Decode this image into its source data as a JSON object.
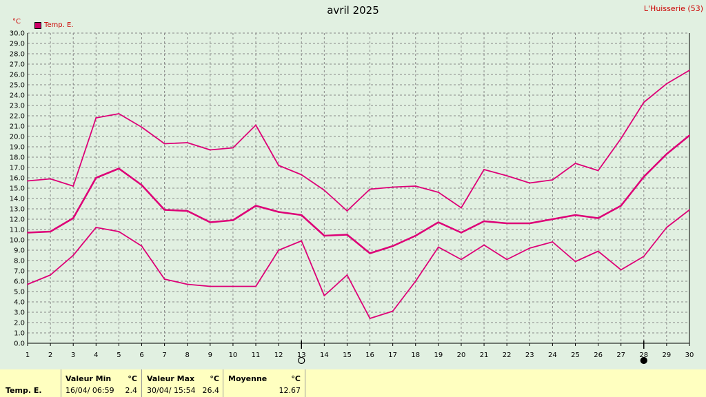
{
  "header": {
    "title": "avril 2025",
    "station": "L'Huisserie (53)",
    "unit": "°C"
  },
  "legend": {
    "label": "Temp. E.",
    "color": "#cc0066"
  },
  "stats": {
    "row_label": "Temp. E.",
    "min": {
      "header": "Valeur Min",
      "unit": "°C",
      "date": "16/04/  06:59",
      "value": "2.4"
    },
    "max": {
      "header": "Valeur Max",
      "unit": "°C",
      "date": "30/04/  15:54",
      "value": "26.4"
    },
    "mean": {
      "header": "Moyenne",
      "unit": "°C",
      "value": "12.67"
    }
  },
  "chart_data": {
    "type": "line",
    "x": [
      1,
      2,
      3,
      4,
      5,
      6,
      7,
      8,
      9,
      10,
      11,
      12,
      13,
      14,
      15,
      16,
      17,
      18,
      19,
      20,
      21,
      22,
      23,
      24,
      25,
      26,
      27,
      28,
      29,
      30
    ],
    "xlim": [
      1,
      30
    ],
    "ylim": [
      0,
      30
    ],
    "y_ticks": [
      "0.0",
      "1.0",
      "2.0",
      "3.0",
      "4.0",
      "5.0",
      "6.0",
      "7.0",
      "8.0",
      "9.0",
      "10.0",
      "11.0",
      "12.0",
      "13.0",
      "14.0",
      "15.0",
      "16.0",
      "17.0",
      "18.0",
      "19.0",
      "20.0",
      "21.0",
      "22.0",
      "23.0",
      "24.0",
      "25.0",
      "26.0",
      "27.0",
      "28.0",
      "29.0",
      "30.0"
    ],
    "grid": true,
    "color": "#dd0077",
    "series": [
      {
        "values": [
          15.7,
          15.9,
          15.2,
          21.8,
          22.2,
          20.9,
          19.3,
          19.4,
          18.7,
          18.9,
          21.1,
          17.2,
          16.3,
          14.8,
          12.8,
          14.9,
          15.1,
          15.2,
          14.6,
          13.1,
          16.8,
          16.2,
          15.5,
          15.8,
          17.4,
          16.7,
          19.8,
          23.3,
          25.1,
          26.4
        ],
        "width": 1.8
      },
      {
        "values": [
          10.7,
          10.8,
          12.1,
          16.0,
          16.9,
          15.3,
          12.9,
          12.8,
          11.7,
          11.9,
          13.3,
          12.7,
          12.4,
          10.4,
          10.5,
          8.7,
          9.4,
          10.4,
          11.7,
          10.7,
          11.8,
          11.6,
          11.6,
          12.0,
          12.4,
          12.1,
          13.3,
          16.1,
          18.3,
          20.1
        ],
        "width": 2.6
      },
      {
        "values": [
          5.7,
          6.6,
          8.5,
          11.2,
          10.8,
          9.4,
          6.2,
          5.7,
          5.5,
          5.5,
          5.5,
          9.0,
          9.9,
          4.6,
          6.6,
          2.4,
          3.1,
          6.0,
          9.3,
          8.1,
          9.5,
          8.1,
          9.2,
          9.8,
          7.9,
          8.9,
          7.1,
          8.4,
          11.2,
          12.9
        ],
        "width": 1.8
      }
    ],
    "moon_markers": [
      {
        "day": 13,
        "phase": "full-moon"
      },
      {
        "day": 28,
        "phase": "new-moon"
      }
    ]
  }
}
